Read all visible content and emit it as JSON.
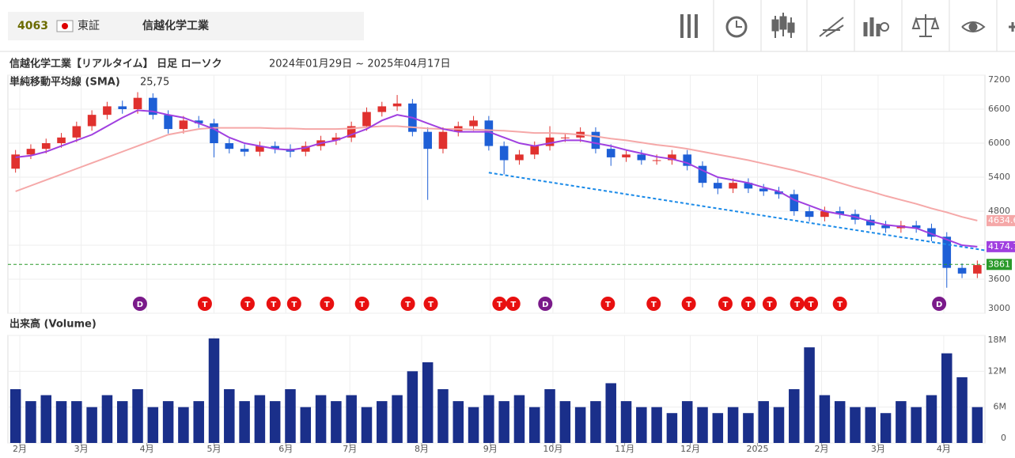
{
  "header": {
    "code": "4063",
    "market": "東証",
    "name": "信越化学工業"
  },
  "chart_data": [
    {
      "type": "candlestick",
      "title": "信越化学工業【リアルタイム】 日足 ローソク",
      "subtitle": "2024年01月29日 ~ 2025年04月17日",
      "indicator_label": "単純移動平均線 (SMA)",
      "indicator_params": "25,75",
      "xlim": [
        0,
        64
      ],
      "ylim": [
        3000,
        7200
      ],
      "yticks": [
        3000,
        3600,
        4200,
        4800,
        5400,
        6000,
        6600,
        7200
      ],
      "grid": true,
      "up_color": "#e0312e",
      "down_color": "#1e5fd6",
      "open": [
        5550,
        5800,
        5900,
        6000,
        6100,
        6300,
        6500,
        6650,
        6600,
        6800,
        6500,
        6250,
        6400,
        6350,
        6000,
        5900,
        5850,
        5950,
        5900,
        5850,
        5950,
        6050,
        6100,
        6300,
        6550,
        6650,
        6700,
        6200,
        5900,
        6200,
        6300,
        6400,
        5950,
        5700,
        5800,
        5950,
        6100,
        6100,
        6200,
        5900,
        5750,
        5800,
        5700,
        5700,
        5800,
        5600,
        5300,
        5200,
        5300,
        5200,
        5150,
        5100,
        4800,
        4700,
        4800,
        4750,
        4650,
        4550,
        4500,
        4550,
        4500,
        4350,
        3800,
        3700
      ],
      "high": [
        5880,
        5980,
        6080,
        6180,
        6380,
        6580,
        6730,
        6750,
        6900,
        6880,
        6580,
        6480,
        6480,
        6430,
        6080,
        5980,
        6030,
        6030,
        5980,
        6030,
        6130,
        6180,
        6380,
        6630,
        6730,
        6850,
        6780,
        6280,
        6280,
        6380,
        6480,
        6480,
        6030,
        5880,
        6030,
        6300,
        6180,
        6280,
        6280,
        5980,
        5880,
        5880,
        5800,
        5880,
        5880,
        5680,
        5380,
        5380,
        5380,
        5280,
        5230,
        5180,
        4880,
        4880,
        4880,
        4830,
        4730,
        4630,
        4630,
        4630,
        4580,
        4430,
        3880,
        3930
      ],
      "low": [
        5480,
        5720,
        5820,
        5920,
        6020,
        6220,
        6420,
        6520,
        6520,
        6420,
        6170,
        6170,
        6270,
        5750,
        5820,
        5770,
        5770,
        5820,
        5750,
        5770,
        5870,
        5970,
        6020,
        6220,
        6470,
        6570,
        6120,
        5000,
        5820,
        6120,
        6220,
        5870,
        5450,
        5620,
        5720,
        5870,
        6020,
        6020,
        5820,
        5600,
        5670,
        5620,
        5620,
        5620,
        5520,
        5220,
        5100,
        5120,
        5120,
        5070,
        5020,
        4720,
        4620,
        4620,
        4670,
        4570,
        4470,
        4420,
        4420,
        4420,
        4270,
        3450,
        3620,
        3620
      ],
      "close": [
        5800,
        5900,
        6000,
        6100,
        6300,
        6500,
        6650,
        6600,
        6800,
        6500,
        6250,
        6400,
        6350,
        6000,
        5900,
        5850,
        5950,
        5900,
        5850,
        5950,
        6050,
        6100,
        6300,
        6550,
        6650,
        6700,
        6200,
        5900,
        6200,
        6300,
        6400,
        5950,
        5700,
        5800,
        5950,
        6100,
        6100,
        6200,
        5900,
        5750,
        5800,
        5700,
        5700,
        5800,
        5600,
        5300,
        5200,
        5300,
        5200,
        5150,
        5100,
        4800,
        4700,
        4800,
        4750,
        4650,
        4550,
        4500,
        4550,
        4500,
        4350,
        3800,
        3700,
        3850
      ],
      "series": [
        {
          "color": "#f5a8a8",
          "last_label": "4634.6",
          "values": [
            5150,
            5250,
            5350,
            5450,
            5550,
            5650,
            5750,
            5850,
            5950,
            6050,
            6150,
            6200,
            6250,
            6270,
            6270,
            6270,
            6270,
            6260,
            6260,
            6250,
            6250,
            6250,
            6260,
            6280,
            6300,
            6300,
            6280,
            6260,
            6250,
            6250,
            6240,
            6230,
            6220,
            6200,
            6180,
            6180,
            6170,
            6150,
            6120,
            6080,
            6050,
            6010,
            5970,
            5940,
            5900,
            5850,
            5800,
            5750,
            5700,
            5640,
            5580,
            5520,
            5450,
            5380,
            5300,
            5220,
            5150,
            5070,
            5000,
            4930,
            4850,
            4780,
            4700,
            4634
          ]
        },
        {
          "color": "#a040e0",
          "last_label": "4174.7",
          "values": [
            5750,
            5780,
            5850,
            5950,
            6050,
            6150,
            6300,
            6450,
            6580,
            6560,
            6500,
            6450,
            6350,
            6250,
            6100,
            6000,
            5950,
            5900,
            5880,
            5920,
            6000,
            6050,
            6150,
            6250,
            6400,
            6500,
            6450,
            6350,
            6250,
            6200,
            6200,
            6200,
            6100,
            6000,
            5950,
            6000,
            6050,
            6050,
            6000,
            5950,
            5880,
            5820,
            5760,
            5720,
            5650,
            5520,
            5400,
            5350,
            5300,
            5220,
            5150,
            5000,
            4900,
            4800,
            4750,
            4700,
            4620,
            4560,
            4530,
            4500,
            4400,
            4300,
            4200,
            4174
          ]
        }
      ],
      "current_price": 3861,
      "current_color": "#2a9a2a",
      "trendline": {
        "x": [
          31.5,
          64
        ],
        "values": [
          5480,
          4110
        ],
        "color": "#1a8ae8"
      },
      "events": [
        {
          "label": "D",
          "x": 8.65
        },
        {
          "label": "T",
          "x": 12.9
        },
        {
          "label": "T",
          "x": 15.7
        },
        {
          "label": "T",
          "x": 17.4
        },
        {
          "label": "T",
          "x": 18.75
        },
        {
          "label": "T",
          "x": 20.9
        },
        {
          "label": "T",
          "x": 23.2
        },
        {
          "label": "T",
          "x": 26.2
        },
        {
          "label": "T",
          "x": 27.7
        },
        {
          "label": "T",
          "x": 32.2
        },
        {
          "label": "T",
          "x": 33.1
        },
        {
          "label": "D",
          "x": 35.2
        },
        {
          "label": "T",
          "x": 39.3
        },
        {
          "label": "T",
          "x": 42.3
        },
        {
          "label": "T",
          "x": 44.6
        },
        {
          "label": "T",
          "x": 47.0
        },
        {
          "label": "T",
          "x": 48.5
        },
        {
          "label": "T",
          "x": 49.9
        },
        {
          "label": "T",
          "x": 51.7
        },
        {
          "label": "T",
          "x": 52.6
        },
        {
          "label": "T",
          "x": 54.5
        },
        {
          "label": "D",
          "x": 61.0
        }
      ]
    },
    {
      "type": "bar",
      "title": "出来高 (Volume)",
      "color": "#1a2f8a",
      "xlim": [
        0,
        64
      ],
      "xticks": [
        {
          "value": 0.78,
          "label": "2月"
        },
        {
          "value": 4.8,
          "label": "3月"
        },
        {
          "value": 9.1,
          "label": "4月"
        },
        {
          "value": 13.5,
          "label": "5月"
        },
        {
          "value": 18.2,
          "label": "6月"
        },
        {
          "value": 22.4,
          "label": "7月"
        },
        {
          "value": 27.1,
          "label": "8月"
        },
        {
          "value": 31.6,
          "label": "9月"
        },
        {
          "value": 35.7,
          "label": "10月"
        },
        {
          "value": 40.4,
          "label": "11月"
        },
        {
          "value": 44.7,
          "label": "12月"
        },
        {
          "value": 49.1,
          "label": "2025"
        },
        {
          "value": 53.3,
          "label": "2月"
        },
        {
          "value": 57.0,
          "label": "3月"
        },
        {
          "value": 61.3,
          "label": "4月"
        }
      ],
      "ylim": [
        0,
        18000000
      ],
      "yticks": [
        0,
        {
          "value": 6000000,
          "label": "6M"
        },
        {
          "value": 12000000,
          "label": "12M"
        },
        {
          "value": 18000000,
          "label": "18M"
        }
      ],
      "values": [
        9000000,
        7000000,
        8000000,
        7000000,
        7000000,
        6000000,
        8000000,
        7000000,
        9000000,
        6000000,
        7000000,
        6000000,
        7000000,
        17500000,
        9000000,
        7000000,
        8000000,
        7000000,
        9000000,
        6000000,
        8000000,
        7000000,
        8000000,
        6000000,
        7000000,
        8000000,
        12000000,
        13500000,
        9000000,
        7000000,
        6000000,
        8000000,
        7000000,
        8000000,
        6000000,
        9000000,
        7000000,
        6000000,
        7000000,
        10000000,
        7000000,
        6000000,
        6000000,
        5000000,
        7000000,
        6000000,
        5000000,
        6000000,
        5000000,
        7000000,
        6000000,
        9000000,
        16000000,
        8000000,
        7000000,
        6000000,
        6000000,
        5000000,
        7000000,
        6000000,
        8000000,
        15000000,
        11000000,
        6000000
      ]
    }
  ]
}
